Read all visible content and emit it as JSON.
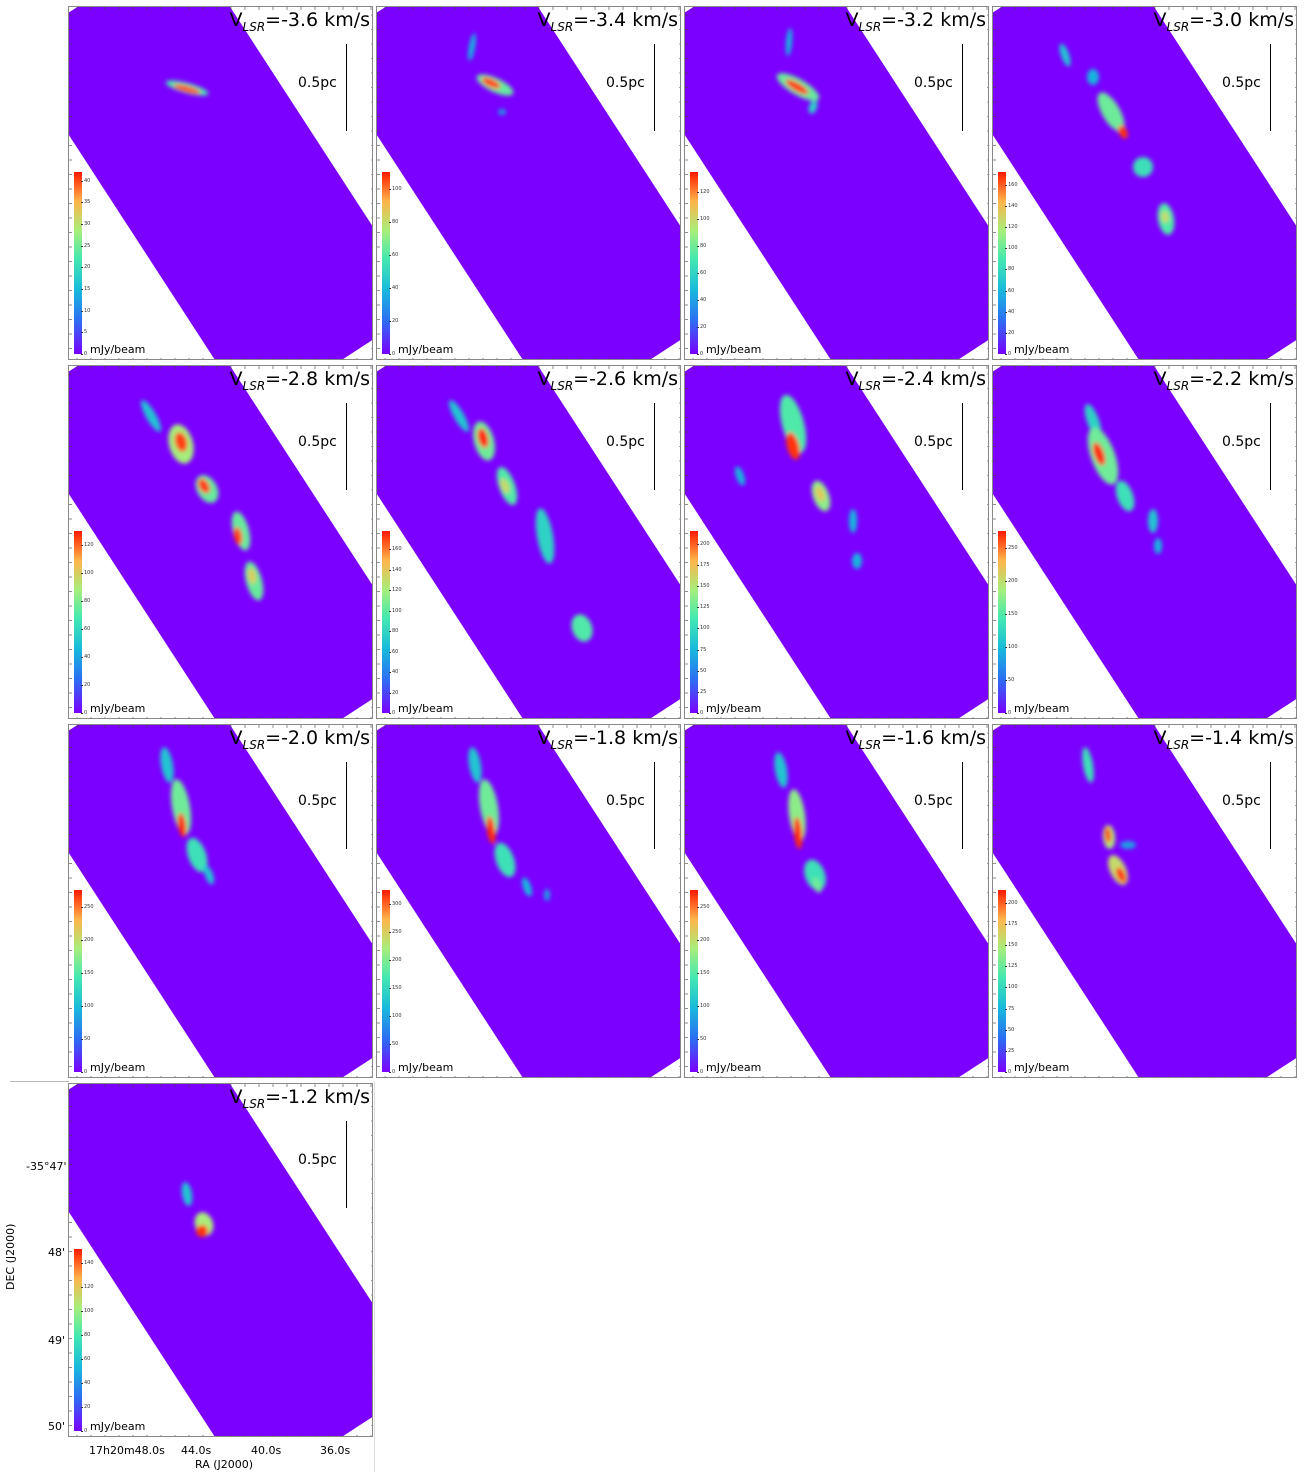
{
  "chart_data": {
    "type": "heatmap",
    "panel_unit": "mJy/beam",
    "scale_bar_label": "0.5pc",
    "xlabel": "RA (J2000)",
    "ylabel": "DEC (J2000)",
    "x_ticks": [
      "17h20m48.0s",
      "44.0s",
      "40.0s",
      "36.0s"
    ],
    "y_ticks": [
      "-35°47'",
      "48'",
      "49'",
      "50'"
    ],
    "colormap": "rainbow",
    "panels": [
      {
        "label_prefix": "V",
        "label_sub": "LSR",
        "label_suffix": "=-3.6 km/s",
        "velocity_kms": -3.6,
        "cbar_ticks": [
          "0",
          "5",
          "10",
          "15",
          "20",
          "25",
          "30",
          "35",
          "40"
        ],
        "cbar_max": 42,
        "peak": 40
      },
      {
        "label_prefix": "V",
        "label_sub": "LSR",
        "label_suffix": "=-3.4 km/s",
        "velocity_kms": -3.4,
        "cbar_ticks": [
          "0",
          "20",
          "40",
          "60",
          "80",
          "100"
        ],
        "cbar_max": 110,
        "peak": 105
      },
      {
        "label_prefix": "V",
        "label_sub": "LSR",
        "label_suffix": "=-3.2 km/s",
        "velocity_kms": -3.2,
        "cbar_ticks": [
          "0",
          "20",
          "40",
          "60",
          "80",
          "100",
          "120"
        ],
        "cbar_max": 135,
        "peak": 130
      },
      {
        "label_prefix": "V",
        "label_sub": "LSR",
        "label_suffix": "=-3.0 km/s",
        "velocity_kms": -3.0,
        "cbar_ticks": [
          "0",
          "20",
          "40",
          "60",
          "80",
          "100",
          "120",
          "140",
          "160"
        ],
        "cbar_max": 172,
        "peak": 168
      },
      {
        "label_prefix": "V",
        "label_sub": "LSR",
        "label_suffix": "=-2.8 km/s",
        "velocity_kms": -2.8,
        "cbar_ticks": [
          "0",
          "20",
          "40",
          "60",
          "80",
          "100",
          "120"
        ],
        "cbar_max": 130,
        "peak": 125
      },
      {
        "label_prefix": "V",
        "label_sub": "LSR",
        "label_suffix": "=-2.6 km/s",
        "velocity_kms": -2.6,
        "cbar_ticks": [
          "0",
          "20",
          "40",
          "60",
          "80",
          "100",
          "120",
          "140",
          "160"
        ],
        "cbar_max": 178,
        "peak": 175
      },
      {
        "label_prefix": "V",
        "label_sub": "LSR",
        "label_suffix": "=-2.4 km/s",
        "velocity_kms": -2.4,
        "cbar_ticks": [
          "0",
          "25",
          "50",
          "75",
          "100",
          "125",
          "150",
          "175",
          "200"
        ],
        "cbar_max": 215,
        "peak": 210
      },
      {
        "label_prefix": "V",
        "label_sub": "LSR",
        "label_suffix": "=-2.2 km/s",
        "velocity_kms": -2.2,
        "cbar_ticks": [
          "0",
          "50",
          "100",
          "150",
          "200",
          "250"
        ],
        "cbar_max": 275,
        "peak": 270
      },
      {
        "label_prefix": "V",
        "label_sub": "LSR",
        "label_suffix": "=-2.0 km/s",
        "velocity_kms": -2.0,
        "cbar_ticks": [
          "0",
          "50",
          "100",
          "150",
          "200",
          "250"
        ],
        "cbar_max": 275,
        "peak": 270
      },
      {
        "label_prefix": "V",
        "label_sub": "LSR",
        "label_suffix": "=-1.8 km/s",
        "velocity_kms": -1.8,
        "cbar_ticks": [
          "0",
          "50",
          "100",
          "150",
          "200",
          "250",
          "300"
        ],
        "cbar_max": 325,
        "peak": 320
      },
      {
        "label_prefix": "V",
        "label_sub": "LSR",
        "label_suffix": "=-1.6 km/s",
        "velocity_kms": -1.6,
        "cbar_ticks": [
          "0",
          "50",
          "100",
          "150",
          "200",
          "250"
        ],
        "cbar_max": 275,
        "peak": 270
      },
      {
        "label_prefix": "V",
        "label_sub": "LSR",
        "label_suffix": "=-1.4 km/s",
        "velocity_kms": -1.4,
        "cbar_ticks": [
          "0",
          "25",
          "50",
          "75",
          "100",
          "125",
          "150",
          "175",
          "200"
        ],
        "cbar_max": 215,
        "peak": 210
      },
      {
        "label_prefix": "V",
        "label_sub": "LSR",
        "label_suffix": "=-1.2 km/s",
        "velocity_kms": -1.2,
        "cbar_ticks": [
          "0",
          "20",
          "40",
          "60",
          "80",
          "100",
          "120",
          "140"
        ],
        "cbar_max": 152,
        "peak": 148
      }
    ]
  }
}
